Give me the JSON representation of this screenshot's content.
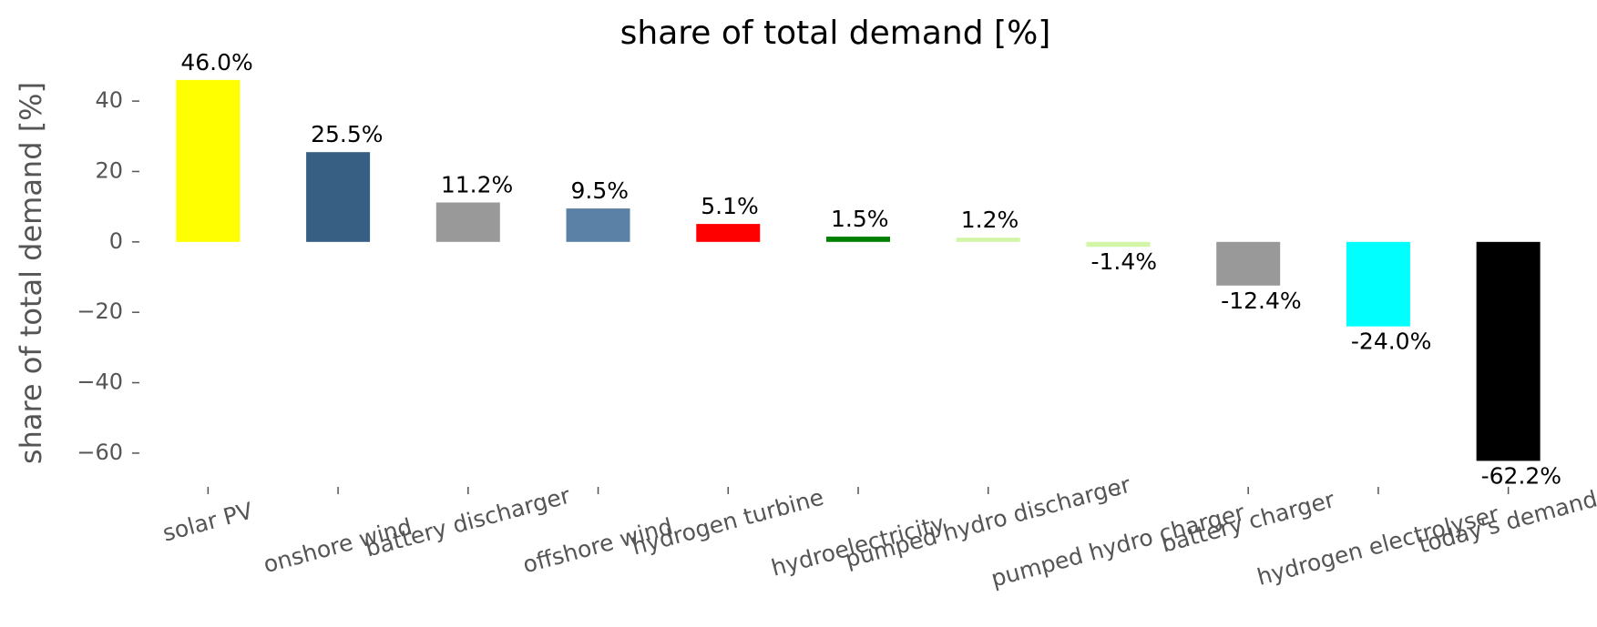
{
  "chart_data": {
    "type": "bar",
    "title": "share of total demand [%]",
    "y_label": "share of total demand [%]",
    "categories": [
      "solar PV",
      "onshore wind",
      "battery discharger",
      "offshore wind",
      "hydrogen turbine",
      "hydroelectricity",
      "pumped hydro discharger",
      "pumped hydro charger",
      "battery charger",
      "hydrogen electrolyser",
      "today's demand"
    ],
    "values": [
      46.0,
      25.5,
      11.2,
      9.5,
      5.1,
      1.5,
      1.2,
      -1.4,
      -12.4,
      -24.0,
      -62.2
    ],
    "value_labels": [
      "46.0%",
      "25.5%",
      "11.2%",
      "9.5%",
      "5.1%",
      "1.5%",
      "1.2%",
      "-1.4%",
      "-12.4%",
      "-24.0%",
      "-62.2%"
    ],
    "colors": [
      "#ffff00",
      "#375e83",
      "#999999",
      "#5b82a6",
      "#ff0000",
      "#008000",
      "#d3f5a8",
      "#d3f5a8",
      "#999999",
      "#00ffff",
      "#000000"
    ],
    "ylim": [
      -67,
      47
    ],
    "yticks": [
      {
        "value": -60,
        "label": "−60"
      },
      {
        "value": -40,
        "label": "−40"
      },
      {
        "value": -20,
        "label": "−20"
      },
      0,
      20,
      40
    ],
    "grid": false
  }
}
